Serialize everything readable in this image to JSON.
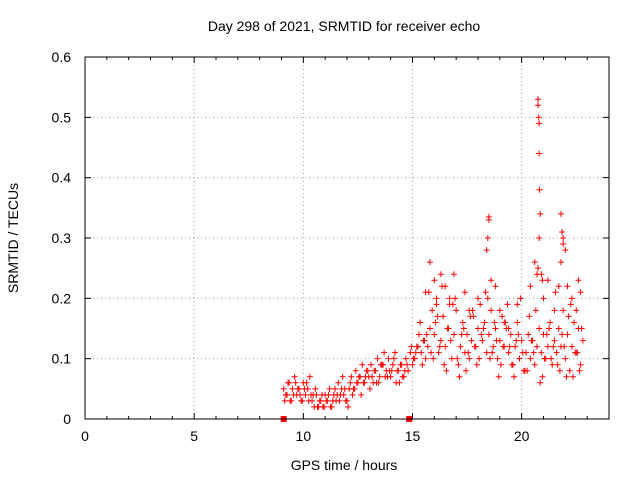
{
  "chart_data": {
    "type": "scatter",
    "title": "Day 298 of 2021, SRMTID for receiver echo",
    "xlabel": "GPS time / hours",
    "ylabel": "SRMTID / TECUs",
    "xlim": [
      0,
      24
    ],
    "ylim": [
      0,
      0.6
    ],
    "xticks": [
      0,
      5,
      10,
      15,
      20
    ],
    "yticks": [
      0,
      0.1,
      0.2,
      0.3,
      0.4,
      0.5,
      0.6
    ],
    "xtick_labels": [
      "0",
      "5",
      "10",
      "15",
      "20"
    ],
    "ytick_labels": [
      "0",
      "0.1",
      "0.2",
      "0.3",
      "0.4",
      "0.5",
      "0.6"
    ],
    "grid": true,
    "legend": "none",
    "marker": "+",
    "color": "#ff0000",
    "gap_markers": [
      {
        "x": 9.1,
        "y": 0.0
      },
      {
        "x": 14.85,
        "y": 0.0
      }
    ],
    "series": [
      {
        "name": "SRMTID",
        "x": [
          9.1,
          9.2,
          9.3,
          9.4,
          9.5,
          9.6,
          9.7,
          9.8,
          9.9,
          10.0,
          10.1,
          10.2,
          10.3,
          10.4,
          10.5,
          10.6,
          10.7,
          10.8,
          10.9,
          11.0,
          11.1,
          11.2,
          11.3,
          11.4,
          11.5,
          11.6,
          11.7,
          11.8,
          11.9,
          12.0,
          12.1,
          12.2,
          12.3,
          12.4,
          12.5,
          12.6,
          12.7,
          12.8,
          12.9,
          13.0,
          13.1,
          13.2,
          13.3,
          13.4,
          13.5,
          13.6,
          13.7,
          13.8,
          13.9,
          14.0,
          14.1,
          14.2,
          14.3,
          14.4,
          14.5,
          14.6,
          14.7,
          14.8,
          14.9,
          15.0,
          15.1,
          15.2,
          15.3,
          15.4,
          15.5,
          15.6,
          15.7,
          15.8,
          15.9,
          16.0,
          16.1,
          16.2,
          16.3,
          16.4,
          16.5,
          16.6,
          16.7,
          16.8,
          16.9,
          17.0,
          17.1,
          17.2,
          17.3,
          17.4,
          17.5,
          17.6,
          17.7,
          17.8,
          17.9,
          18.0,
          18.1,
          18.2,
          18.3,
          18.4,
          18.5,
          18.6,
          18.7,
          18.8,
          18.9,
          19.0,
          19.1,
          19.2,
          19.3,
          19.4,
          19.5,
          19.6,
          19.7,
          19.8,
          19.9,
          20.0,
          20.1,
          20.2,
          20.3,
          20.4,
          20.5,
          20.6,
          20.7,
          20.8,
          20.9,
          21.0,
          21.1,
          21.2,
          21.3,
          21.4,
          21.5,
          21.6,
          21.7,
          21.8,
          21.9,
          22.0,
          22.1,
          22.2,
          22.3,
          22.4,
          22.5,
          22.6,
          22.7,
          22.8,
          9.15,
          9.35,
          9.55,
          9.75,
          9.95,
          10.15,
          10.35,
          10.55,
          10.75,
          10.95,
          11.15,
          11.35,
          11.55,
          11.75,
          11.95,
          12.15,
          12.35,
          12.55,
          12.75,
          12.95,
          13.15,
          13.35,
          13.55,
          13.75,
          13.95,
          14.15,
          14.35,
          14.55,
          14.75,
          14.95,
          15.15,
          15.35,
          15.55,
          15.75,
          15.95,
          16.15,
          16.35,
          16.55,
          16.75,
          16.95,
          17.15,
          17.35,
          17.55,
          17.75,
          17.95,
          18.15,
          18.35,
          18.55,
          18.75,
          18.95,
          19.15,
          19.35,
          19.55,
          19.75,
          19.95,
          20.15,
          20.35,
          20.55,
          20.75,
          20.95,
          21.15,
          21.35,
          21.55,
          21.75,
          21.95,
          22.15,
          22.35,
          22.55,
          22.75,
          9.25,
          9.45,
          9.65,
          9.85,
          10.05,
          10.25,
          10.45,
          10.65,
          10.85,
          11.05,
          11.25,
          11.45,
          11.65,
          11.85,
          12.05,
          12.25,
          12.45,
          12.65,
          12.85,
          13.05,
          13.25,
          13.45,
          13.65,
          13.85,
          14.05,
          14.25,
          14.45,
          14.65,
          15.05,
          15.25,
          15.45,
          15.65,
          15.85,
          16.05,
          16.25,
          16.45,
          16.65,
          16.85,
          17.05,
          17.25,
          17.45,
          17.65,
          17.85,
          18.05,
          18.25,
          18.45,
          18.65,
          18.85,
          19.05,
          19.25,
          19.45,
          19.65,
          19.85,
          20.05,
          20.25,
          20.45,
          20.65,
          20.85,
          21.05,
          21.25,
          21.45,
          21.65,
          21.85,
          22.05,
          22.25,
          22.45,
          22.65,
          15.6,
          15.8,
          16.0,
          16.1,
          16.3,
          16.5,
          16.7,
          16.9,
          17.4,
          17.6,
          18.0,
          18.4,
          18.5,
          18.6,
          18.8,
          19.0,
          19.2,
          19.4,
          19.8,
          20.4,
          20.6,
          20.7,
          20.8,
          20.85,
          20.9,
          20.95,
          21.0,
          21.2,
          21.5,
          21.7,
          21.8,
          21.9,
          22.0,
          22.1,
          22.3,
          22.5,
          22.6,
          22.7,
          20.75,
          20.75,
          20.78,
          20.8,
          20.8,
          20.82,
          18.5,
          18.45,
          21.8,
          21.85,
          21.9
        ],
        "y": [
          0.05,
          0.04,
          0.06,
          0.03,
          0.05,
          0.07,
          0.04,
          0.05,
          0.03,
          0.06,
          0.04,
          0.05,
          0.07,
          0.03,
          0.02,
          0.04,
          0.02,
          0.03,
          0.02,
          0.04,
          0.03,
          0.05,
          0.02,
          0.04,
          0.03,
          0.06,
          0.04,
          0.07,
          0.05,
          0.03,
          0.05,
          0.07,
          0.05,
          0.08,
          0.06,
          0.07,
          0.09,
          0.06,
          0.08,
          0.07,
          0.09,
          0.06,
          0.08,
          0.1,
          0.07,
          0.09,
          0.11,
          0.08,
          0.1,
          0.07,
          0.09,
          0.11,
          0.08,
          0.06,
          0.09,
          0.07,
          0.1,
          0.08,
          0.11,
          0.09,
          0.1,
          0.12,
          0.14,
          0.11,
          0.13,
          0.1,
          0.12,
          0.15,
          0.18,
          0.14,
          0.2,
          0.11,
          0.13,
          0.17,
          0.12,
          0.15,
          0.19,
          0.1,
          0.14,
          0.18,
          0.09,
          0.12,
          0.16,
          0.11,
          0.14,
          0.1,
          0.13,
          0.17,
          0.12,
          0.15,
          0.19,
          0.13,
          0.16,
          0.11,
          0.14,
          0.18,
          0.12,
          0.15,
          0.1,
          0.13,
          0.17,
          0.12,
          0.15,
          0.11,
          0.14,
          0.09,
          0.12,
          0.16,
          0.1,
          0.13,
          0.08,
          0.11,
          0.14,
          0.1,
          0.13,
          0.09,
          0.12,
          0.15,
          0.11,
          0.14,
          0.1,
          0.12,
          0.16,
          0.09,
          0.13,
          0.11,
          0.15,
          0.12,
          0.18,
          0.1,
          0.14,
          0.08,
          0.12,
          0.16,
          0.11,
          0.15,
          0.09,
          0.13,
          0.03,
          0.06,
          0.04,
          0.05,
          0.03,
          0.06,
          0.04,
          0.05,
          0.03,
          0.02,
          0.04,
          0.03,
          0.04,
          0.05,
          0.03,
          0.06,
          0.05,
          0.07,
          0.06,
          0.08,
          0.07,
          0.06,
          0.09,
          0.07,
          0.08,
          0.1,
          0.08,
          0.07,
          0.09,
          0.12,
          0.11,
          0.16,
          0.13,
          0.21,
          0.1,
          0.17,
          0.22,
          0.08,
          0.13,
          0.2,
          0.07,
          0.15,
          0.11,
          0.18,
          0.09,
          0.14,
          0.21,
          0.1,
          0.16,
          0.07,
          0.12,
          0.19,
          0.09,
          0.13,
          0.2,
          0.08,
          0.17,
          0.11,
          0.25,
          0.07,
          0.14,
          0.1,
          0.21,
          0.08,
          0.12,
          0.17,
          0.07,
          0.11,
          0.15,
          0.04,
          0.03,
          0.06,
          0.04,
          0.05,
          0.03,
          0.04,
          0.02,
          0.04,
          0.03,
          0.02,
          0.05,
          0.03,
          0.04,
          0.02,
          0.04,
          0.06,
          0.04,
          0.07,
          0.05,
          0.08,
          0.06,
          0.09,
          0.07,
          0.08,
          0.06,
          0.09,
          0.08,
          0.1,
          0.12,
          0.09,
          0.14,
          0.11,
          0.16,
          0.12,
          0.09,
          0.15,
          0.19,
          0.1,
          0.14,
          0.08,
          0.17,
          0.12,
          0.1,
          0.15,
          0.2,
          0.11,
          0.13,
          0.09,
          0.16,
          0.12,
          0.07,
          0.14,
          0.11,
          0.08,
          0.13,
          0.18,
          0.06,
          0.1,
          0.15,
          0.12,
          0.09,
          0.14,
          0.07,
          0.19,
          0.11,
          0.08,
          0.21,
          0.26,
          0.23,
          0.19,
          0.24,
          0.22,
          0.2,
          0.24,
          0.21,
          0.18,
          0.2,
          0.28,
          0.33,
          0.23,
          0.22,
          0.18,
          0.16,
          0.15,
          0.19,
          0.22,
          0.26,
          0.24,
          0.3,
          0.34,
          0.24,
          0.23,
          0.2,
          0.23,
          0.18,
          0.22,
          0.26,
          0.3,
          0.28,
          0.22,
          0.2,
          0.18,
          0.23,
          0.21,
          0.53,
          0.52,
          0.5,
          0.49,
          0.44,
          0.38,
          0.335,
          0.3,
          0.34,
          0.31,
          0.29
        ]
      }
    ]
  }
}
